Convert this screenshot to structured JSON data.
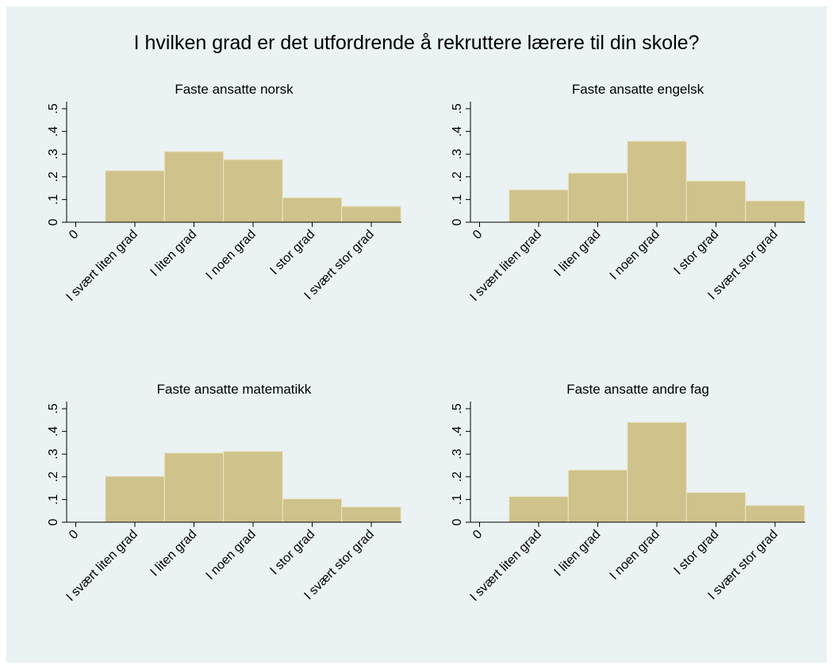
{
  "title": "I hvilken grad er det utfordrende å rekruttere lærere til din skole?",
  "chart_data": [
    {
      "type": "bar",
      "title": "Faste ansatte norsk",
      "color": "#cfc28a",
      "categories": [
        "0",
        "I svært liten grad",
        "I liten grad",
        "I noen grad",
        "I stor grad",
        "I svært stor grad"
      ],
      "values": [
        0,
        0.227,
        0.311,
        0.276,
        0.108,
        0.07
      ],
      "ylim": [
        0,
        0.5
      ],
      "yticks": [
        0,
        {
          "value": 0.1,
          "label": ".1"
        },
        {
          "value": 0.2,
          "label": ".2"
        },
        {
          "value": 0.3,
          "label": ".3"
        },
        {
          "value": 0.4,
          "label": ".4"
        },
        {
          "value": 0.5,
          "label": ".5"
        }
      ]
    },
    {
      "type": "bar",
      "title": "Faste ansatte engelsk",
      "color": "#cfc28a",
      "categories": [
        "0",
        "I svært liten grad",
        "I liten grad",
        "I noen grad",
        "I stor grad",
        "I svært stor grad"
      ],
      "values": [
        0,
        0.143,
        0.217,
        0.357,
        0.182,
        0.094
      ],
      "ylim": [
        0,
        0.5
      ],
      "yticks": [
        0,
        {
          "value": 0.1,
          "label": ".1"
        },
        {
          "value": 0.2,
          "label": ".2"
        },
        {
          "value": 0.3,
          "label": ".3"
        },
        {
          "value": 0.4,
          "label": ".4"
        },
        {
          "value": 0.5,
          "label": ".5"
        }
      ]
    },
    {
      "type": "bar",
      "title": "Faste ansatte matematikk",
      "color": "#cfc28a",
      "categories": [
        "0",
        "I svært liten grad",
        "I liten grad",
        "I noen grad",
        "I stor grad",
        "I svært stor grad"
      ],
      "values": [
        0,
        0.202,
        0.305,
        0.312,
        0.103,
        0.067
      ],
      "ylim": [
        0,
        0.5
      ],
      "yticks": [
        0,
        {
          "value": 0.1,
          "label": ".1"
        },
        {
          "value": 0.2,
          "label": ".2"
        },
        {
          "value": 0.3,
          "label": ".3"
        },
        {
          "value": 0.4,
          "label": ".4"
        },
        {
          "value": 0.5,
          "label": ".5"
        }
      ]
    },
    {
      "type": "bar",
      "title": "Faste ansatte andre fag",
      "color": "#cfc28a",
      "categories": [
        "0",
        "I svært liten grad",
        "I liten grad",
        "I noen grad",
        "I stor grad",
        "I svært stor grad"
      ],
      "values": [
        0,
        0.113,
        0.23,
        0.44,
        0.131,
        0.074
      ],
      "ylim": [
        0,
        0.5
      ],
      "yticks": [
        0,
        {
          "value": 0.1,
          "label": ".1"
        },
        {
          "value": 0.2,
          "label": ".2"
        },
        {
          "value": 0.3,
          "label": ".3"
        },
        {
          "value": 0.4,
          "label": ".4"
        },
        {
          "value": 0.5,
          "label": ".5"
        }
      ]
    }
  ]
}
